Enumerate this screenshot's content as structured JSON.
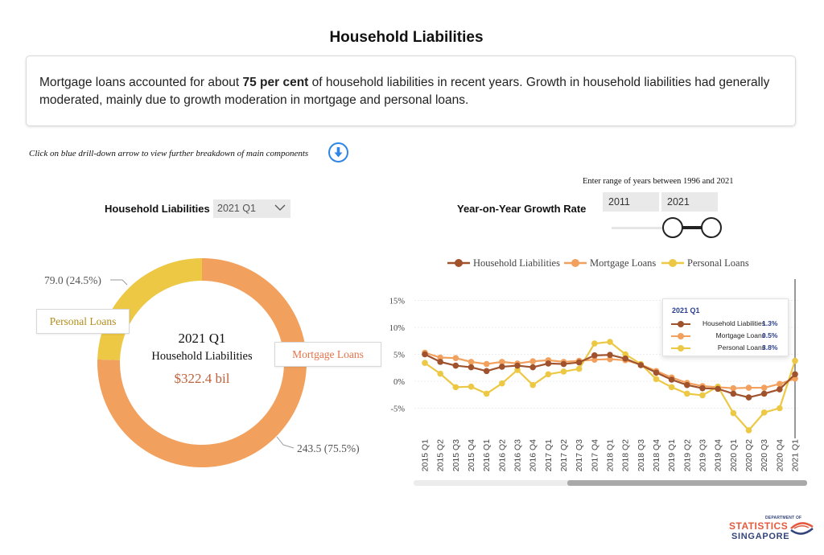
{
  "page": {
    "title": "Household Liabilities"
  },
  "summary": {
    "part1": "Mortgage loans accounted for about ",
    "highlight": "75 per cent",
    "part2": " of household liabilities in recent years. Growth in household liabilities had generally moderated, mainly due to growth moderation in mortgage and personal loans."
  },
  "drilldown": {
    "hint": "Click on blue drill-down arrow to view further breakdown of main components",
    "icon": "arrow-down-circle-icon"
  },
  "donut_panel": {
    "label": "Household Liabilities",
    "selected_period": "2021 Q1",
    "center_title": "2021 Q1",
    "center_subtitle": "Household Liabilities",
    "center_total": "$322.4 bil"
  },
  "growth_panel": {
    "label": "Year-on-Year Growth Rate",
    "range_hint": "Enter range of years between 1996 and 2021",
    "start_year": "2011",
    "end_year": "2021",
    "slider_min": 1996,
    "slider_max": 2021
  },
  "tooltip": {
    "period": "2021 Q1",
    "rows": [
      {
        "name": "Household Liabilities",
        "value": "1.3%"
      },
      {
        "name": "Mortgage Loans",
        "value": "0.5%"
      },
      {
        "name": "Personal Loans",
        "value": "3.8%"
      }
    ]
  },
  "logo": {
    "small": "DEPARTMENT OF",
    "main": "STATISTICS",
    "sub": "SINGAPORE"
  },
  "chart_data": [
    {
      "type": "pie",
      "donut": true,
      "slices": [
        {
          "name": "Mortgage Loans",
          "value": 243.5,
          "label": "243.5 (75.5%)",
          "color": "#f2a05d"
        },
        {
          "name": "Personal Loans",
          "value": 79.0,
          "label": "79.0 (24.5%)",
          "color": "#ecc844"
        }
      ]
    },
    {
      "type": "line",
      "categories": [
        "2015 Q1",
        "2015 Q2",
        "2015 Q3",
        "2015 Q4",
        "2016 Q1",
        "2016 Q2",
        "2016 Q3",
        "2016 Q4",
        "2017 Q1",
        "2017 Q2",
        "2017 Q3",
        "2017 Q4",
        "2018 Q1",
        "2018 Q2",
        "2018 Q3",
        "2018 Q4",
        "2019 Q1",
        "2019 Q2",
        "2019 Q3",
        "2019 Q4",
        "2020 Q1",
        "2020 Q2",
        "2020 Q3",
        "2020 Q4",
        "2021 Q1"
      ],
      "yticks": [
        "15%",
        "10%",
        "5%",
        "0%",
        "-5%"
      ],
      "ylim": [
        -10,
        16
      ],
      "series": [
        {
          "name": "Household Liabilities",
          "color": "#a0522d",
          "values": [
            5.0,
            3.6,
            2.9,
            2.6,
            1.9,
            2.7,
            2.9,
            2.6,
            3.3,
            3.2,
            3.5,
            4.8,
            4.9,
            4.2,
            3.0,
            1.6,
            0.3,
            -0.7,
            -1.3,
            -1.4,
            -2.3,
            -3.0,
            -2.3,
            -1.5,
            1.3
          ]
        },
        {
          "name": "Mortgage Loans",
          "color": "#f2a05d",
          "values": [
            5.3,
            4.4,
            4.3,
            3.6,
            3.2,
            3.6,
            3.3,
            3.7,
            3.9,
            3.6,
            3.8,
            4.0,
            4.1,
            3.9,
            3.1,
            1.9,
            0.7,
            -0.3,
            -0.9,
            -1.1,
            -1.3,
            -1.2,
            -1.2,
            -0.5,
            0.5
          ]
        },
        {
          "name": "Personal Loans",
          "color": "#ecc844",
          "values": [
            3.4,
            1.4,
            -1.1,
            -1.0,
            -2.3,
            -0.4,
            2.1,
            -0.7,
            1.3,
            1.8,
            2.3,
            7.0,
            7.3,
            5.0,
            3.2,
            0.4,
            -1.1,
            -2.3,
            -2.6,
            -1.0,
            -5.9,
            -9.1,
            -5.8,
            -5.0,
            3.8
          ]
        }
      ]
    }
  ]
}
